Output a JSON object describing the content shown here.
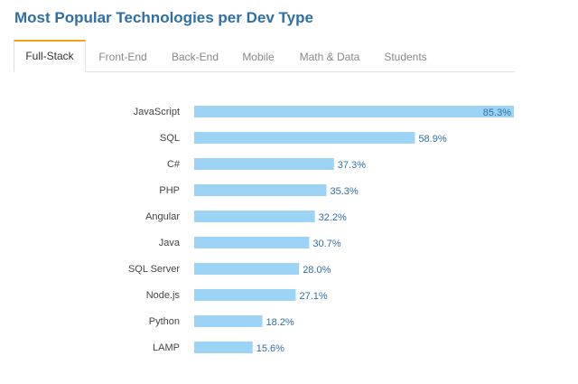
{
  "title": "Most Popular Technologies per Dev Type",
  "tabs": [
    {
      "label": "Full-Stack",
      "active": true
    },
    {
      "label": "Front-End",
      "active": false
    },
    {
      "label": "Back-End",
      "active": false
    },
    {
      "label": "Mobile",
      "active": false
    },
    {
      "label": "Math & Data",
      "active": false
    },
    {
      "label": "Students",
      "active": false
    }
  ],
  "colors": {
    "bar": "#9dd4f5",
    "accent": "#f7a21b",
    "title": "#2f6fa5",
    "value_label": "#2f6fa5"
  },
  "chart_data": {
    "type": "bar",
    "orientation": "horizontal",
    "title": "Most Popular Technologies per Dev Type",
    "categories": [
      "JavaScript",
      "SQL",
      "C#",
      "PHP",
      "Angular",
      "Java",
      "SQL Server",
      "Node.js",
      "Python",
      "LAMP"
    ],
    "values": [
      85.3,
      58.9,
      37.3,
      35.3,
      32.2,
      30.7,
      28.0,
      27.1,
      18.2,
      15.6
    ],
    "value_labels": [
      "85.3%",
      "58.9%",
      "37.3%",
      "35.3%",
      "32.2%",
      "30.7%",
      "28.0%",
      "27.1%",
      "18.2%",
      "15.6%"
    ],
    "unit": "%",
    "xlim": [
      0,
      85.3
    ],
    "grid": false,
    "legend": "none"
  }
}
